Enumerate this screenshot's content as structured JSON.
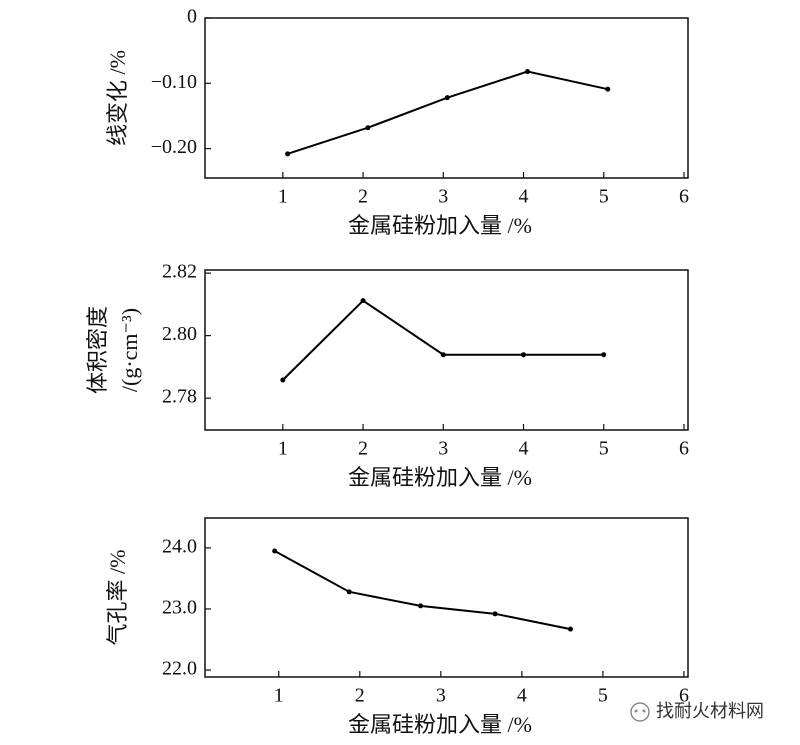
{
  "chart_data": [
    {
      "type": "line",
      "xlabel": "金属硅粉加入量 /%",
      "ylabel": [
        "线变化 /%"
      ],
      "x": [
        1.06,
        2.06,
        3.05,
        4.05,
        5.05
      ],
      "values": [
        -0.208,
        -0.168,
        -0.122,
        -0.082,
        -0.109
      ],
      "color": "#000000",
      "xlim": [
        0.03,
        6.05
      ],
      "ylim": [
        -0.245,
        0
      ],
      "xticks": [
        1,
        2,
        3,
        4,
        5,
        6
      ],
      "yticks": [
        0,
        {
          "value": -0.1,
          "label": "−0.10"
        },
        {
          "value": -0.2,
          "label": "−0.20"
        }
      ]
    },
    {
      "type": "line",
      "xlabel": "金属硅粉加入量 /%",
      "ylabel": [
        "体积密度",
        "/(g·cm⁻³)"
      ],
      "x": [
        1,
        2,
        3,
        4,
        5
      ],
      "values": [
        2.7858,
        2.8112,
        2.7939,
        2.7939,
        2.7939
      ],
      "color": "#000000",
      "xlim": [
        0.03,
        6.05
      ],
      "ylim": [
        2.7698,
        2.821
      ],
      "xticks": [
        1,
        2,
        3,
        4,
        5,
        6
      ],
      "yticks": [
        2.82,
        {
          "value": 2.8,
          "label": "2.80"
        },
        2.78
      ]
    },
    {
      "type": "line",
      "xlabel": "金属硅粉加入量 /%",
      "ylabel": [
        "气孔率 /%"
      ],
      "x": [
        0.95,
        1.87,
        2.75,
        3.67,
        4.6
      ],
      "values": [
        23.95,
        23.28,
        23.05,
        22.92,
        22.67
      ],
      "color": "#000000",
      "xlim": [
        0.09,
        6.05
      ],
      "ylim": [
        21.885,
        24.49
      ],
      "xticks": [
        1,
        2,
        3,
        4,
        5,
        6
      ],
      "yticks": [
        {
          "value": 24,
          "label": "24.0"
        },
        {
          "value": 23,
          "label": "23.0"
        },
        {
          "value": 22,
          "label": "22.0"
        }
      ]
    }
  ],
  "watermark": "找耐火材料网"
}
